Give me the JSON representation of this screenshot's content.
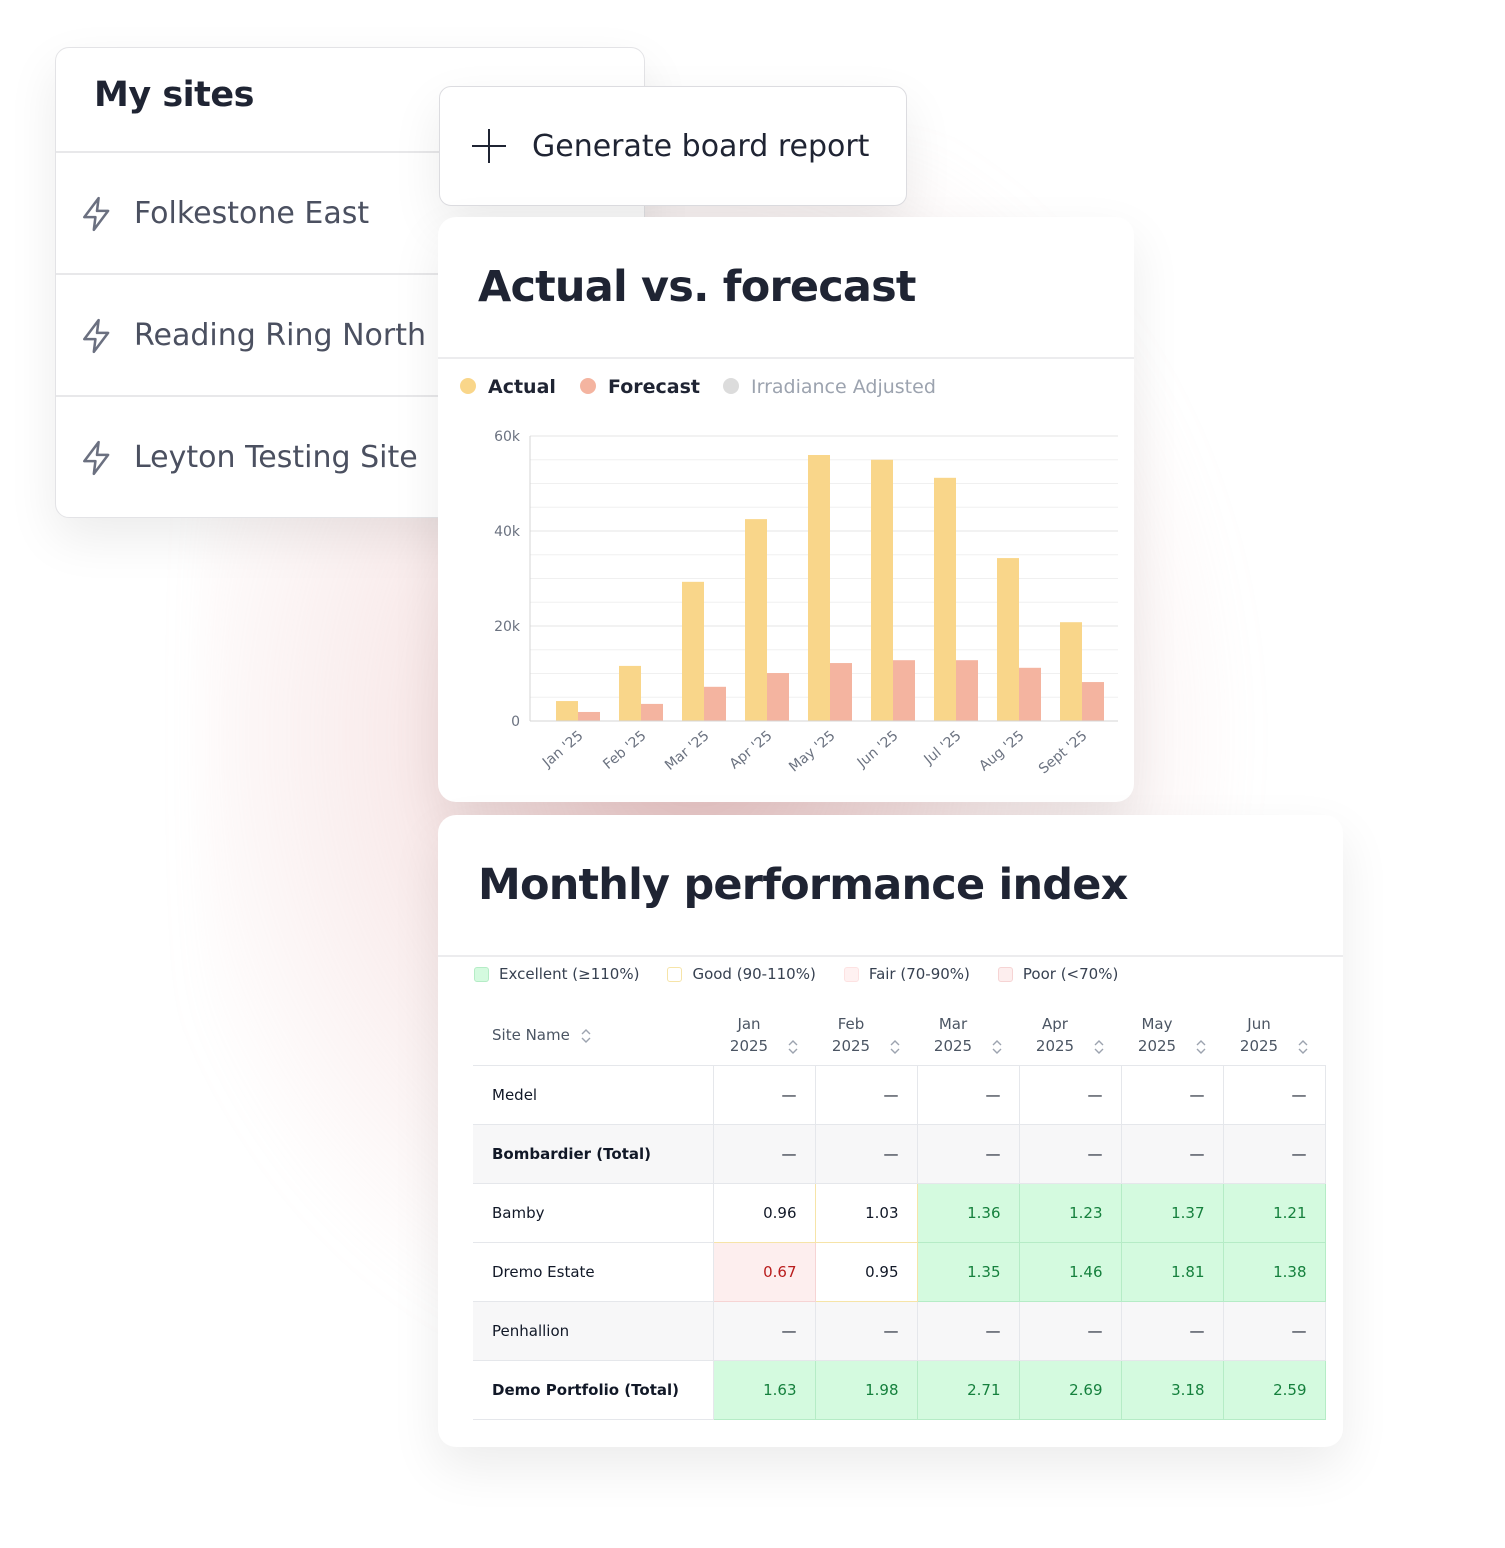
{
  "sites": {
    "title": "My sites",
    "items": [
      "Folkestone East",
      "Reading Ring North",
      "Leyton Testing Site"
    ]
  },
  "button": {
    "label": "Generate board report"
  },
  "chart_data": {
    "type": "bar",
    "title": "Actual vs. forecast",
    "categories": [
      "Jan '25",
      "Feb '25",
      "Mar '25",
      "Apr '25",
      "May '25",
      "Jun '25",
      "Jul '25",
      "Aug '25",
      "Sept '25"
    ],
    "series": [
      {
        "name": "Actual",
        "color": "#f9d68a",
        "values": [
          4200,
          11600,
          29300,
          42500,
          56000,
          55000,
          51200,
          34300,
          20800
        ]
      },
      {
        "name": "Forecast",
        "color": "#f4b4a0",
        "values": [
          1900,
          3600,
          7200,
          10100,
          12200,
          12800,
          12800,
          11200,
          8200
        ]
      },
      {
        "name": "Irradiance Adjusted",
        "color": "#dcdcdc",
        "hidden": true,
        "values": [
          null,
          null,
          null,
          null,
          null,
          null,
          null,
          null,
          null
        ]
      }
    ],
    "ylim": [
      0,
      60000
    ],
    "yticks": [
      0,
      {
        "value": 20000,
        "label": "20k"
      },
      {
        "value": 40000,
        "label": "40k"
      },
      {
        "value": 60000,
        "label": "60k"
      }
    ],
    "minor_yticks": [
      5000,
      10000,
      15000,
      25000,
      30000,
      35000,
      45000,
      50000,
      55000
    ],
    "grid": true,
    "legend": "top-left"
  },
  "performance": {
    "title": "Monthly performance index",
    "legend": [
      {
        "label": "Excellent (≥110%)",
        "status": "excellent",
        "color": "#d4fadf",
        "text_color": "#15803d",
        "border": "#b5ecc6"
      },
      {
        "label": "Good (90-110%)",
        "status": "good",
        "color": "#ffffff",
        "text_color": "#111827",
        "border": "#f6e4a8"
      },
      {
        "label": "Fair (70-90%)",
        "status": "fair",
        "color": "#fff1f1",
        "text_color": "#111827",
        "border": "#fde2e2"
      },
      {
        "label": "Poor (<70%)",
        "status": "poor",
        "color": "#fdeeee",
        "text_color": "#b91c1c",
        "border": "#f6d4d4"
      }
    ],
    "columns": [
      "Site Name",
      "Jan 2025",
      "Feb 2025",
      "Mar 2025",
      "Apr 2025",
      "May 2025",
      "Jun 2025"
    ],
    "rows": [
      {
        "name": "Medel",
        "bold": false,
        "cells": [
          "—",
          "—",
          "—",
          "—",
          "—",
          "—"
        ]
      },
      {
        "name": "Bombardier (Total)",
        "bold": true,
        "cells": [
          "—",
          "—",
          "—",
          "—",
          "—",
          "—"
        ]
      },
      {
        "name": "Bamby",
        "bold": false,
        "cells": [
          0.96,
          1.03,
          1.36,
          1.23,
          1.37,
          1.21
        ],
        "status": [
          "good",
          "good",
          "excellent",
          "excellent",
          "excellent",
          "excellent"
        ]
      },
      {
        "name": "Dremo Estate",
        "bold": false,
        "cells": [
          0.67,
          0.95,
          1.35,
          1.46,
          1.81,
          1.38
        ],
        "status": [
          "poor",
          "good",
          "excellent",
          "excellent",
          "excellent",
          "excellent"
        ]
      },
      {
        "name": "Penhallion",
        "bold": false,
        "cells": [
          "—",
          "—",
          "—",
          "—",
          "—",
          "—"
        ]
      },
      {
        "name": "Demo Portfolio (Total)",
        "bold": true,
        "cells": [
          1.63,
          1.98,
          2.71,
          2.69,
          3.18,
          2.59
        ],
        "status": [
          "excellent",
          "excellent",
          "excellent",
          "excellent",
          "excellent",
          "excellent"
        ]
      }
    ]
  }
}
